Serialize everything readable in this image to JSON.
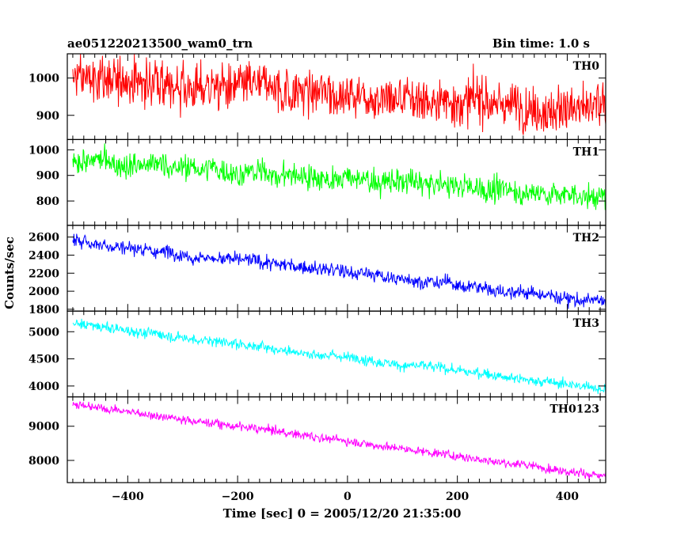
{
  "header": {
    "title": "ae051220213500_wam0_trn",
    "bin_time": "Bin time: 1.0 s"
  },
  "chart_data": {
    "type": "line",
    "xlabel": "Time [sec] 0 = 2005/12/20 21:35:00",
    "ylabel": "Counts/sec",
    "xlim": [
      -510,
      470
    ],
    "x_range": [
      -500,
      470
    ],
    "x_ticks": [
      -400,
      -200,
      0,
      200,
      400
    ],
    "x_tick_labels": [
      "−400",
      "−200",
      "0",
      "200",
      "400"
    ],
    "panels": [
      {
        "name": "TH0",
        "color": "#ff0000",
        "ylim": [
          835,
          1065
        ],
        "y_ticks": [
          900,
          1000
        ],
        "y_tick_labels": [
          "900",
          "1000"
        ],
        "start": 1000,
        "end": 915,
        "noise": 45,
        "jitter": 10
      },
      {
        "name": "TH1",
        "color": "#00ff00",
        "ylim": [
          705,
          1040
        ],
        "y_ticks": [
          800,
          900,
          1000
        ],
        "y_tick_labels": [
          "800",
          "900",
          "1000"
        ],
        "start": 960,
        "end": 815,
        "noise": 35,
        "jitter": 12
      },
      {
        "name": "TH2",
        "color": "#0000ff",
        "ylim": [
          1780,
          2730
        ],
        "y_ticks": [
          1800,
          2000,
          2200,
          2400,
          2600
        ],
        "y_tick_labels": [
          "1800",
          "2000",
          "2200",
          "2400",
          "2600"
        ],
        "start": 2560,
        "end": 1880,
        "noise": 55,
        "jitter": 20
      },
      {
        "name": "TH3",
        "color": "#00ffff",
        "ylim": [
          3800,
          5380
        ],
        "y_ticks": [
          4000,
          4500,
          5000
        ],
        "y_tick_labels": [
          "4000",
          "4500",
          "5000"
        ],
        "start": 5150,
        "end": 3950,
        "noise": 70,
        "jitter": 25
      },
      {
        "name": "TH0123",
        "color": "#ff00ff",
        "ylim": [
          7350,
          9860
        ],
        "y_ticks": [
          8000,
          9000
        ],
        "y_tick_labels": [
          "8000",
          "9000"
        ],
        "start": 9650,
        "end": 7550,
        "noise": 90,
        "jitter": 30
      }
    ]
  }
}
